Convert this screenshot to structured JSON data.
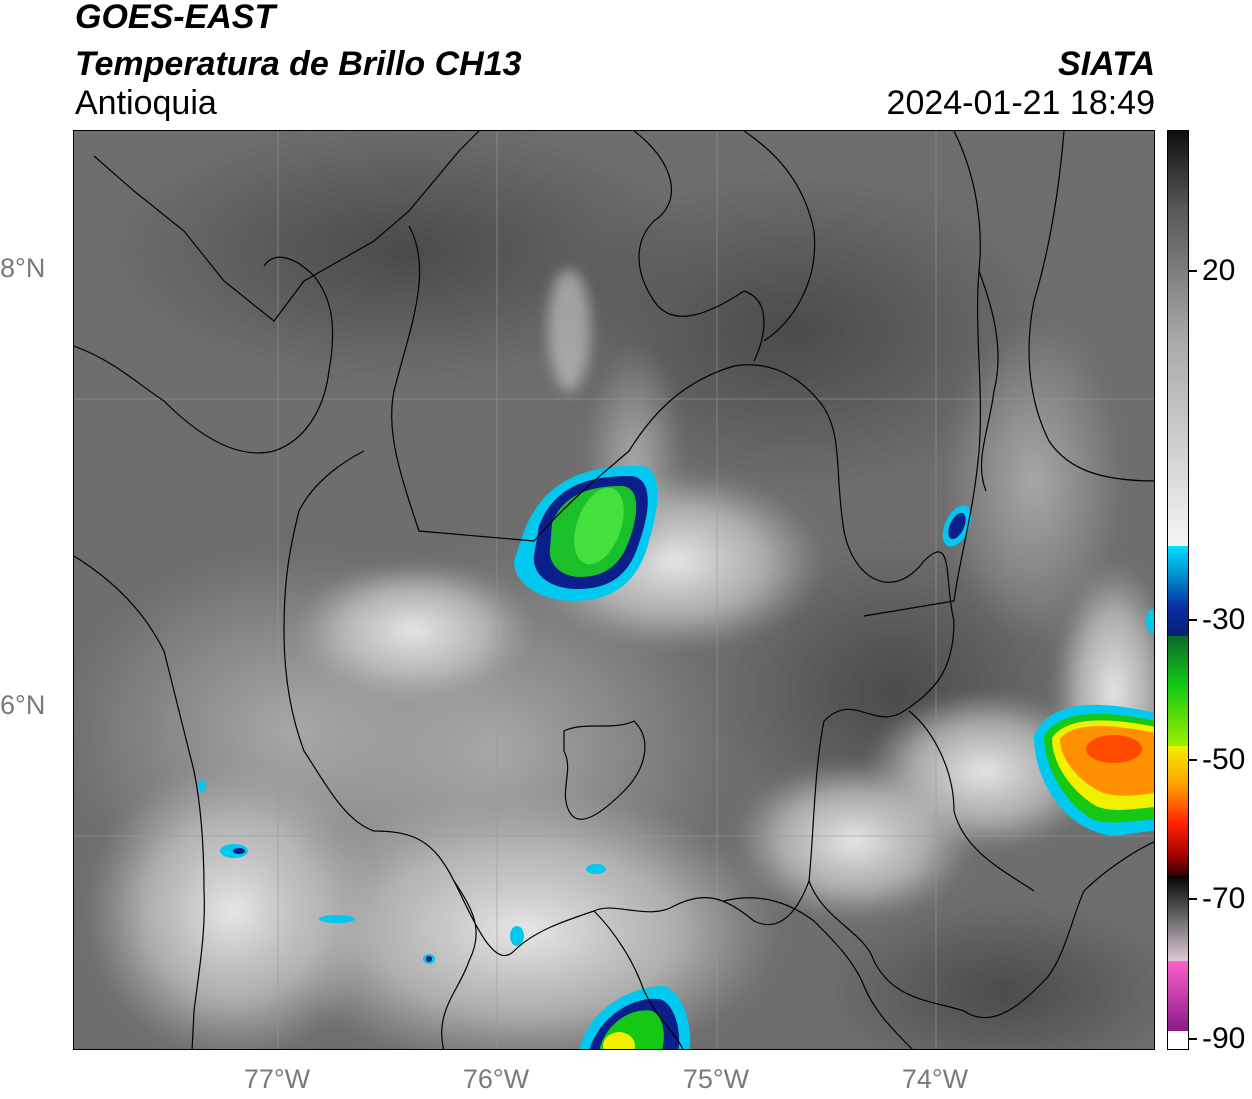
{
  "header": {
    "satellite": "GOES-EAST",
    "product": "Temperatura de Brillo CH13",
    "region": "Antioquia",
    "organization": "SIATA",
    "datetime": "2024-01-21 18:49"
  },
  "map": {
    "lat_labels": [
      "8°N",
      "6°N"
    ],
    "lon_labels": [
      "77°W",
      "76°W",
      "75°W",
      "74°W"
    ],
    "gridlines": true,
    "background_colormap": "grayscale",
    "colors": {
      "cold_cloud_cyan": "#00c8ee",
      "deep_blue": "#0a1f8a",
      "green": "#14c814",
      "yellow": "#f0f000",
      "orange": "#ff8000",
      "red": "#ff2000"
    }
  },
  "colorbar": {
    "tick_labels": [
      "20",
      "-30",
      "-50",
      "-70",
      "-90"
    ],
    "tick_values": [
      20,
      -30,
      -50,
      -70,
      -90
    ],
    "range": [
      -90,
      40
    ]
  }
}
